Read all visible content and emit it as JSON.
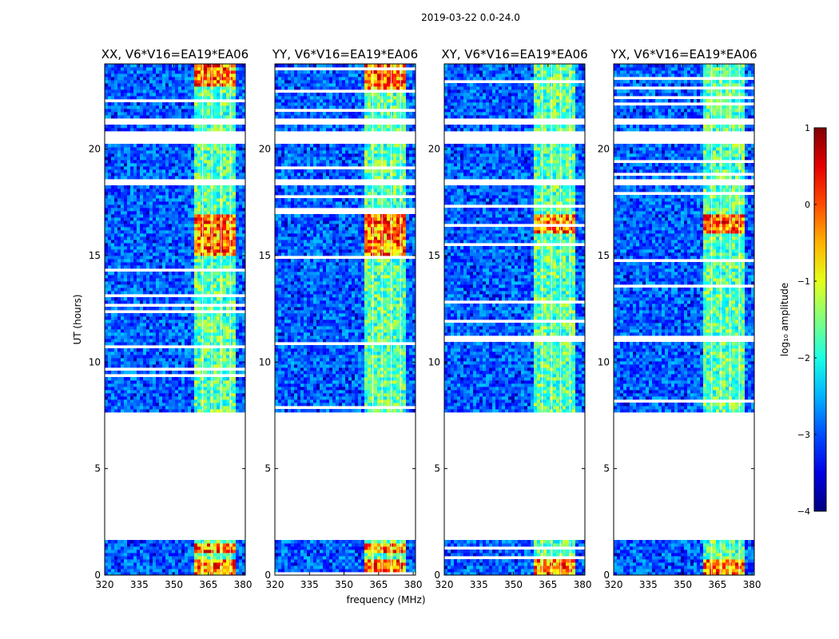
{
  "figure": {
    "suptitle": "2019-03-22 0.0-24.0",
    "ylabel": "UT (hours)",
    "xlabel": "frequency (MHz)",
    "colorbar_label": "log₁₀ amplitude",
    "colors": {
      "background": "#ffffff",
      "axis": "#000000",
      "low": "#00008f",
      "high": "#800000"
    }
  },
  "chart_data": [
    {
      "type": "heatmap",
      "title": "XX, V6*V16=EA19*EA06",
      "xlim": [
        320,
        381
      ],
      "ylim": [
        0,
        24
      ],
      "xticks": [
        320,
        335,
        350,
        365,
        380
      ],
      "yticks": [
        0,
        5,
        10,
        15,
        20
      ],
      "rfi_band_mhz": [
        359.5,
        377.5
      ],
      "channel_lines_mhz": [
        362.5,
        366.5,
        370.5,
        374.5
      ],
      "bright_intervals_ut": [
        [
          0.0,
          0.7
        ],
        [
          1.0,
          1.5
        ],
        [
          15.0,
          16.9
        ],
        [
          23.0,
          24.0
        ]
      ],
      "data_intervals_ut": [
        [
          0.0,
          1.6
        ],
        [
          7.7,
          24.0
        ]
      ],
      "flagged_intervals_ut": [
        [
          1.6,
          7.7
        ],
        [
          18.3,
          18.55
        ],
        [
          20.3,
          20.85
        ],
        [
          21.2,
          21.45
        ]
      ]
    },
    {
      "type": "heatmap",
      "title": "YY, V6*V16=EA19*EA06",
      "xlim": [
        320,
        381
      ],
      "ylim": [
        0,
        24
      ],
      "xticks": [
        320,
        335,
        350,
        365,
        380
      ],
      "yticks": [
        0,
        5,
        10,
        15,
        20
      ],
      "rfi_band_mhz": [
        359.5,
        377.5
      ],
      "channel_lines_mhz": [
        362.5,
        366.5,
        370.5,
        374.5
      ],
      "bright_intervals_ut": [
        [
          0.0,
          0.7
        ],
        [
          1.0,
          1.5
        ],
        [
          15.0,
          16.9
        ],
        [
          22.8,
          24.0
        ]
      ],
      "data_intervals_ut": [
        [
          0.0,
          1.6
        ],
        [
          7.7,
          24.0
        ]
      ],
      "flagged_intervals_ut": [
        [
          1.6,
          7.7
        ],
        [
          18.3,
          18.55
        ],
        [
          20.3,
          20.85
        ],
        [
          21.2,
          21.45
        ]
      ]
    },
    {
      "type": "heatmap",
      "title": "XY, V6*V16=EA19*EA06",
      "xlim": [
        320,
        381
      ],
      "ylim": [
        0,
        24
      ],
      "xticks": [
        320,
        335,
        350,
        365,
        380
      ],
      "yticks": [
        0,
        5,
        10,
        15,
        20
      ],
      "rfi_band_mhz": [
        359.5,
        377.5
      ],
      "channel_lines_mhz": [
        362.5,
        366.5,
        370.5,
        374.5
      ],
      "bright_intervals_ut": [
        [
          0.0,
          0.7
        ],
        [
          16.0,
          16.9
        ]
      ],
      "data_intervals_ut": [
        [
          0.0,
          1.6
        ],
        [
          7.7,
          24.0
        ]
      ],
      "flagged_intervals_ut": [
        [
          1.6,
          7.7
        ],
        [
          18.3,
          18.55
        ],
        [
          20.3,
          20.85
        ],
        [
          21.2,
          21.45
        ]
      ]
    },
    {
      "type": "heatmap",
      "title": "YX, V6*V16=EA19*EA06",
      "xlim": [
        320,
        381
      ],
      "ylim": [
        0,
        24
      ],
      "xticks": [
        320,
        335,
        350,
        365,
        380
      ],
      "yticks": [
        0,
        5,
        10,
        15,
        20
      ],
      "rfi_band_mhz": [
        359.5,
        377.5
      ],
      "channel_lines_mhz": [
        362.5,
        366.5,
        370.5,
        374.5
      ],
      "bright_intervals_ut": [
        [
          0.0,
          0.7
        ],
        [
          16.0,
          16.9
        ]
      ],
      "data_intervals_ut": [
        [
          0.0,
          1.6
        ],
        [
          7.7,
          24.0
        ]
      ],
      "flagged_intervals_ut": [
        [
          1.6,
          7.7
        ],
        [
          18.3,
          18.55
        ],
        [
          20.3,
          20.85
        ],
        [
          21.2,
          21.45
        ]
      ]
    }
  ],
  "colorbar": {
    "range": [
      -4,
      1
    ],
    "ticks": [
      1,
      0,
      -1,
      -2,
      -3,
      -4
    ],
    "tick_labels": [
      "1",
      "0",
      "−1",
      "−2",
      "−3",
      "−4"
    ],
    "colormap": "jet"
  }
}
